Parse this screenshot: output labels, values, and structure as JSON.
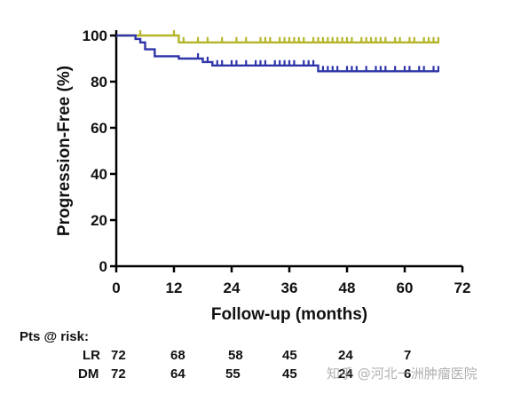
{
  "chart_data": {
    "type": "line",
    "subtype": "kaplan-meier",
    "title": "",
    "xlabel": "Follow-up (months)",
    "ylabel": "Progression-Free (%)",
    "xlim": [
      0,
      72
    ],
    "ylim": [
      0,
      100
    ],
    "xticks": [
      0,
      12,
      24,
      36,
      48,
      60,
      72
    ],
    "yticks": [
      0,
      20,
      40,
      60,
      80,
      100
    ],
    "grid": false,
    "legend": "none",
    "series": [
      {
        "id": "upper",
        "color": "#b5b52a",
        "x": [
          0,
          13,
          67
        ],
        "y": [
          100,
          97,
          97
        ],
        "censor_x": [
          5,
          12,
          14,
          17,
          19,
          22,
          25,
          27,
          30,
          31,
          32,
          34,
          35,
          36,
          37,
          38,
          39,
          41,
          42,
          43,
          44,
          45,
          46,
          47,
          48,
          49,
          51,
          52,
          53,
          54,
          55,
          56,
          58,
          59,
          61,
          62,
          64,
          65,
          66,
          67
        ]
      },
      {
        "id": "lower",
        "color": "#2e35a8",
        "x": [
          0,
          4,
          5,
          6,
          8,
          13,
          18,
          20,
          42,
          67
        ],
        "y": [
          100,
          98.5,
          97,
          94,
          91,
          90,
          88.5,
          87,
          84.5,
          84.5
        ],
        "censor_x": [
          17,
          19,
          21,
          22,
          24,
          25,
          27,
          29,
          30,
          31,
          33,
          34,
          35,
          36,
          37,
          39,
          40,
          41,
          43,
          44,
          45,
          46,
          48,
          49,
          50,
          52,
          54,
          55,
          56,
          58,
          60,
          61,
          63,
          64,
          66,
          67
        ]
      }
    ]
  },
  "risk_table": {
    "header": "Pts @ risk:",
    "rows": [
      {
        "label": "LR",
        "values": [
          "72",
          "68",
          "58",
          "45",
          "24",
          "7"
        ]
      },
      {
        "label": "DM",
        "values": [
          "72",
          "64",
          "55",
          "45",
          "24",
          "6"
        ]
      }
    ]
  },
  "watermark": "知乎 @河北一洲肿瘤医院"
}
